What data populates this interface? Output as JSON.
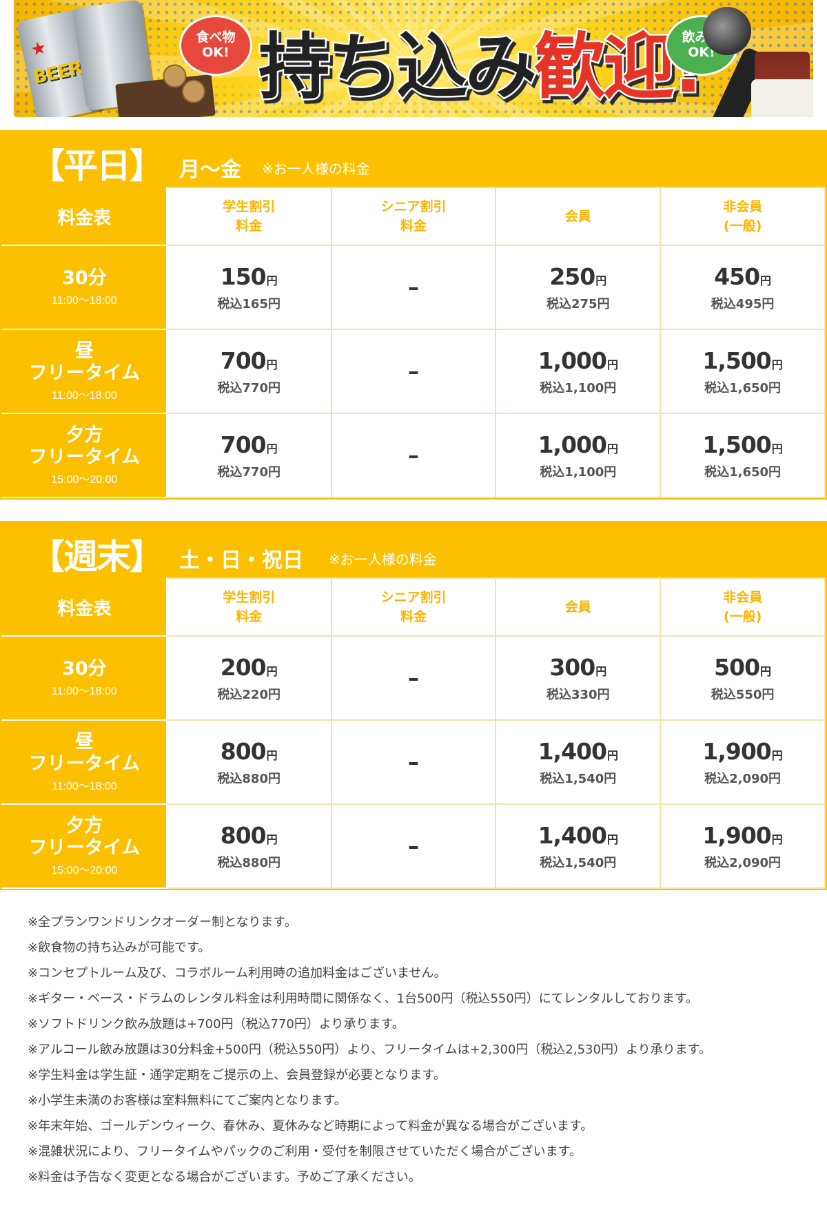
{
  "banner": {
    "bubble_food": [
      "食べ物",
      "OK!"
    ],
    "bubble_drink": [
      "飲み物",
      "OK!"
    ],
    "title_part1": "持ち込み",
    "title_part2": "歓迎!",
    "can_label": "BEER",
    "colors": {
      "accent_yellow": "#fcc000",
      "red": "#e53425",
      "green": "#4caf50"
    }
  },
  "sections": [
    {
      "bracket": "【平日】",
      "days": "月〜金",
      "note": "※お一人様の料金",
      "corner": "料金表",
      "columns": [
        [
          "学生割引",
          "料金"
        ],
        [
          "シニア割引",
          "料金"
        ],
        [
          "会員"
        ],
        [
          "非会員",
          "(一般)"
        ]
      ],
      "rows": [
        {
          "label": [
            "30分"
          ],
          "time": "11:00〜18:00",
          "cells": [
            {
              "price": "150",
              "yen": "円",
              "tax": "税込165円"
            },
            {
              "dash": "–"
            },
            {
              "price": "250",
              "yen": "円",
              "tax": "税込275円"
            },
            {
              "price": "450",
              "yen": "円",
              "tax": "税込495円"
            }
          ]
        },
        {
          "label": [
            "昼",
            "フリータイム"
          ],
          "time": "11:00〜18:00",
          "cells": [
            {
              "price": "700",
              "yen": "円",
              "tax": "税込770円"
            },
            {
              "dash": "–"
            },
            {
              "price": "1,000",
              "yen": "円",
              "tax": "税込1,100円"
            },
            {
              "price": "1,500",
              "yen": "円",
              "tax": "税込1,650円"
            }
          ]
        },
        {
          "label": [
            "夕方",
            "フリータイム"
          ],
          "time": "15:00〜20:00",
          "cells": [
            {
              "price": "700",
              "yen": "円",
              "tax": "税込770円"
            },
            {
              "dash": "–"
            },
            {
              "price": "1,000",
              "yen": "円",
              "tax": "税込1,100円"
            },
            {
              "price": "1,500",
              "yen": "円",
              "tax": "税込1,650円"
            }
          ]
        }
      ]
    },
    {
      "bracket": "【週末】",
      "days": "土・日・祝日",
      "note": "※お一人様の料金",
      "corner": "料金表",
      "columns": [
        [
          "学生割引",
          "料金"
        ],
        [
          "シニア割引",
          "料金"
        ],
        [
          "会員"
        ],
        [
          "非会員",
          "(一般)"
        ]
      ],
      "rows": [
        {
          "label": [
            "30分"
          ],
          "time": "11:00〜18:00",
          "cells": [
            {
              "price": "200",
              "yen": "円",
              "tax": "税込220円"
            },
            {
              "dash": "–"
            },
            {
              "price": "300",
              "yen": "円",
              "tax": "税込330円"
            },
            {
              "price": "500",
              "yen": "円",
              "tax": "税込550円"
            }
          ]
        },
        {
          "label": [
            "昼",
            "フリータイム"
          ],
          "time": "11:00〜18:00",
          "cells": [
            {
              "price": "800",
              "yen": "円",
              "tax": "税込880円"
            },
            {
              "dash": "–"
            },
            {
              "price": "1,400",
              "yen": "円",
              "tax": "税込1,540円"
            },
            {
              "price": "1,900",
              "yen": "円",
              "tax": "税込2,090円"
            }
          ]
        },
        {
          "label": [
            "夕方",
            "フリータイム"
          ],
          "time": "15:00〜20:00",
          "cells": [
            {
              "price": "800",
              "yen": "円",
              "tax": "税込880円"
            },
            {
              "dash": "–"
            },
            {
              "price": "1,400",
              "yen": "円",
              "tax": "税込1,540円"
            },
            {
              "price": "1,900",
              "yen": "円",
              "tax": "税込2,090円"
            }
          ]
        }
      ]
    }
  ],
  "notes": [
    "※全プランワンドリンクオーダー制となります。",
    "※飲食物の持ち込みが可能です。",
    "※コンセプトルーム及び、コラボルーム利用時の追加料金はございません。",
    "※ギター・ベース・ドラムのレンタル料金は利用時間に関係なく、1台500円（税込550円）にてレンタルしております。",
    "※ソフトドリンク飲み放題は+700円（税込770円）より承ります。",
    "※アルコール飲み放題は30分料金+500円（税込550円）より、フリータイムは+2,300円（税込2,530円）より承ります。",
    "※学生料金は学生証・通学定期をご提示の上、会員登録が必要となります。",
    "※小学生未満のお客様は室料無料にてご案内となります。",
    "※年末年始、ゴールデンウィーク、春休み、夏休みなど時期によって料金が異なる場合がございます。",
    "※混雑状況により、フリータイムやパックのご利用・受付を制限させていただく場合がございます。",
    "※料金は予告なく変更となる場合がございます。予めご了承ください。"
  ]
}
